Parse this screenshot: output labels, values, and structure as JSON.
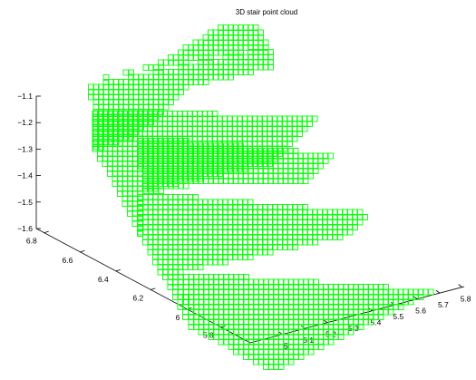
{
  "chart_data": {
    "type": "scatter",
    "title": "3D stair point cloud",
    "marker": "square",
    "color": "#00ff00",
    "grid": false,
    "xlabel": "",
    "ylabel": "",
    "zlabel": "",
    "x_ticks": [
      "5",
      "5.1",
      "5.2",
      "5.3",
      "5.4",
      "5.5",
      "5.6",
      "5.7",
      "5.8"
    ],
    "y_ticks": [
      "5.8",
      "6",
      "6.2",
      "6.4",
      "6.6",
      "6.8"
    ],
    "z_ticks": [
      "−1.1",
      "−1.2",
      "−1.3",
      "−1.4",
      "−1.5",
      "−1.6"
    ],
    "xlim": [
      5.0,
      5.8
    ],
    "ylim": [
      5.75,
      6.9
    ],
    "zlim": [
      -1.65,
      -1.08
    ],
    "steps": [
      {
        "x_range": [
          5.0,
          5.8
        ],
        "y_range": [
          5.75,
          5.95
        ],
        "z": -1.58
      },
      {
        "x_range": [
          5.0,
          5.8
        ],
        "y_range": [
          5.95,
          6.15
        ],
        "z": -1.5
      },
      {
        "x_range": [
          5.0,
          5.8
        ],
        "y_range": [
          6.15,
          6.35
        ],
        "z": -1.42
      },
      {
        "x_range": [
          5.0,
          5.8
        ],
        "y_range": [
          6.35,
          6.55
        ],
        "z": -1.34
      },
      {
        "x_range": [
          5.0,
          5.8
        ],
        "y_range": [
          6.55,
          6.75
        ],
        "z": -1.26
      },
      {
        "x_range": [
          5.0,
          5.8
        ],
        "y_range": [
          6.75,
          6.9
        ],
        "z": -1.18
      }
    ]
  }
}
